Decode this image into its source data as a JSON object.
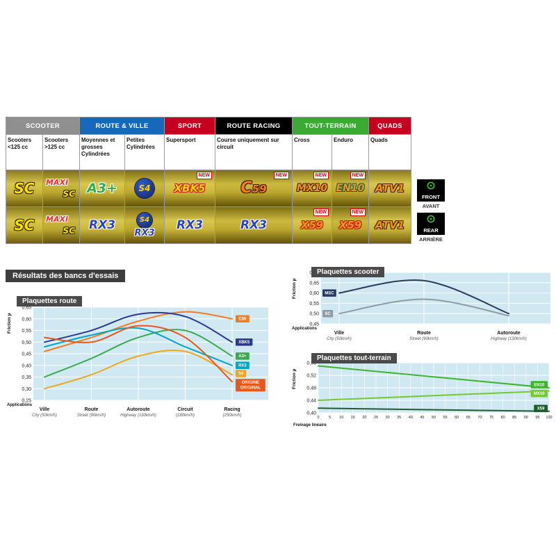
{
  "categories_table": {
    "headers": [
      {
        "label": "SCOOTER",
        "color": "#8f8f8f",
        "span": 2
      },
      {
        "label": "ROUTE & VILLE",
        "color": "#1569b8",
        "span": 2
      },
      {
        "label": "SPORT",
        "color": "#c80020",
        "span": 1
      },
      {
        "label": "ROUTE RACING",
        "color": "#000000",
        "span": 1
      },
      {
        "label": "TOUT-TERRAIN",
        "color": "#3aaa35",
        "span": 2
      },
      {
        "label": "QUADS",
        "color": "#c80020",
        "span": 1
      }
    ],
    "subheaders": [
      "Scooters <125 cc",
      "Scooters >125 cc",
      "Moyennes et grosses Cylindrées",
      "Petites Cylindrées",
      "Supersport",
      "Course uniquement sur circuit",
      "Cross",
      "Enduro",
      "Quads"
    ],
    "new_label": "NEW",
    "badge_defs": {
      "sc": {
        "label": "SC"
      },
      "maxisc": {
        "label": "MAXI",
        "sublabel": "SC"
      },
      "a3plus": {
        "label": "A3+"
      },
      "s4": {
        "label": "S4"
      },
      "xbk5": {
        "label": "XBK5"
      },
      "c59": {
        "label_main": "C",
        "label_rest": "59"
      },
      "rx3": {
        "label": "RX3"
      },
      "mx10": {
        "label": "MX10"
      },
      "en10": {
        "label": "EN10"
      },
      "atv1": {
        "label": "ATV1"
      },
      "x59": {
        "label": "X59"
      }
    },
    "front_row": [
      {
        "badges": [
          "sc"
        ]
      },
      {
        "badges": [
          "maxisc"
        ]
      },
      {
        "badges": [
          "a3plus"
        ]
      },
      {
        "badges": [
          "s4"
        ]
      },
      {
        "badges": [
          "xbk5"
        ],
        "new": true
      },
      {
        "badges": [
          "c59"
        ],
        "new": true
      },
      {
        "badges": [
          "mx10"
        ],
        "new": true
      },
      {
        "badges": [
          "en10"
        ],
        "new": true
      },
      {
        "badges": [
          "atv1"
        ]
      }
    ],
    "rear_row": [
      {
        "badges": [
          "sc"
        ]
      },
      {
        "badges": [
          "maxisc"
        ]
      },
      {
        "badges": [
          "rx3"
        ]
      },
      {
        "badges": [
          "s4",
          "rx3"
        ]
      },
      {
        "badges": [
          "rx3"
        ]
      },
      {
        "badges": [
          "rx3"
        ]
      },
      {
        "badges": [
          "x59"
        ],
        "new": true
      },
      {
        "badges": [
          "x59"
        ],
        "new": true
      },
      {
        "badges": [
          "atv1"
        ]
      }
    ]
  },
  "side_labels": {
    "front": "FRONT",
    "front_sub": "AVANT",
    "rear": "REAR",
    "rear_sub": "ARRIÈRE"
  },
  "section_title": "Résultats des bancs d'essais",
  "chart_data": [
    {
      "id": "route",
      "type": "line",
      "title": "Plaquettes route",
      "ylabel": "Friction µ",
      "xlabel": "Applications",
      "ylim": [
        0.25,
        0.65
      ],
      "ystep": 0.05,
      "plot_bg": "#cfe8f1",
      "grid": true,
      "label_side": "right",
      "categories": [
        [
          "Ville",
          "City (50km/h)"
        ],
        [
          "Route",
          "Street (90km/h)"
        ],
        [
          "Autoroute",
          "Highway (130km/h)"
        ],
        [
          "Circuit",
          "(180km/h)"
        ],
        [
          "Racing",
          "(250km/h)"
        ]
      ],
      "series": [
        {
          "name": "C59",
          "label": [
            "C59"
          ],
          "color": "#f47b20",
          "values": [
            0.46,
            0.52,
            0.59,
            0.63,
            0.6
          ]
        },
        {
          "name": "XBK5",
          "label": [
            "XBK5"
          ],
          "color": "#2b3990",
          "values": [
            0.5,
            0.55,
            0.62,
            0.61,
            0.5
          ]
        },
        {
          "name": "A3+",
          "label": [
            "A3+"
          ],
          "color": "#3aaa4e",
          "values": [
            0.35,
            0.43,
            0.52,
            0.55,
            0.44
          ]
        },
        {
          "name": "RX3",
          "label": [
            "RX3"
          ],
          "color": "#00a5c8",
          "values": [
            0.48,
            0.53,
            0.56,
            0.48,
            0.4
          ]
        },
        {
          "name": "S4",
          "label": [
            "S4"
          ],
          "color": "#f0a51e",
          "label_y": 0.365,
          "values": [
            0.3,
            0.36,
            0.44,
            0.46,
            0.36
          ]
        },
        {
          "name": "ORIGINE ORIGINAL",
          "label": [
            "ORIGINE",
            "ORIGINAL"
          ],
          "color": "#e8571c",
          "label_y": 0.315,
          "values": [
            0.52,
            0.5,
            0.57,
            0.52,
            0.33
          ]
        }
      ]
    },
    {
      "id": "scooter",
      "type": "line",
      "title": "Plaquettes scooter",
      "ylabel": "Friction µ",
      "xlabel": "Applications",
      "ylim": [
        0.45,
        0.7
      ],
      "ystep": 0.05,
      "plot_bg": "#cfe8f1",
      "grid": true,
      "label_side": "left",
      "categories": [
        [
          "Ville",
          "City (50km/h)"
        ],
        [
          "Route",
          "Street (90km/h)"
        ],
        [
          "Autoroute",
          "Highway (130km/h)"
        ]
      ],
      "series": [
        {
          "name": "MSC",
          "label": [
            "MSC"
          ],
          "color": "#2a3a5e",
          "values": [
            0.6,
            0.66,
            0.5
          ]
        },
        {
          "name": "SC",
          "label": [
            "SC"
          ],
          "color": "#8d9ba6",
          "values": [
            0.5,
            0.57,
            0.49
          ]
        }
      ]
    },
    {
      "id": "terrain",
      "type": "line",
      "title": "Plaquettes tout-terrain",
      "ylabel": "Friction µ",
      "xlabel": "Freinage linéaire",
      "ylim": [
        0.4,
        0.56
      ],
      "ystep": 0.04,
      "xlim": [
        0,
        100
      ],
      "xtick_step": 5,
      "plot_bg": "#cfe8f1",
      "grid": true,
      "label_side": "right",
      "series": [
        {
          "name": "EN10",
          "label": [
            "EN10"
          ],
          "color": "#3db52a",
          "label_y": 0.49,
          "points": [
            [
              0,
              0.55
            ],
            [
              100,
              0.48
            ]
          ]
        },
        {
          "name": "MX10",
          "label": [
            "MX10"
          ],
          "color": "#74c92e",
          "label_y": 0.462,
          "points": [
            [
              0,
              0.44
            ],
            [
              100,
              0.47
            ]
          ]
        },
        {
          "name": "X59",
          "label": [
            "X59"
          ],
          "color": "#1e5c30",
          "points": [
            [
              0,
              0.415
            ],
            [
              100,
              0.405
            ]
          ]
        }
      ]
    }
  ]
}
